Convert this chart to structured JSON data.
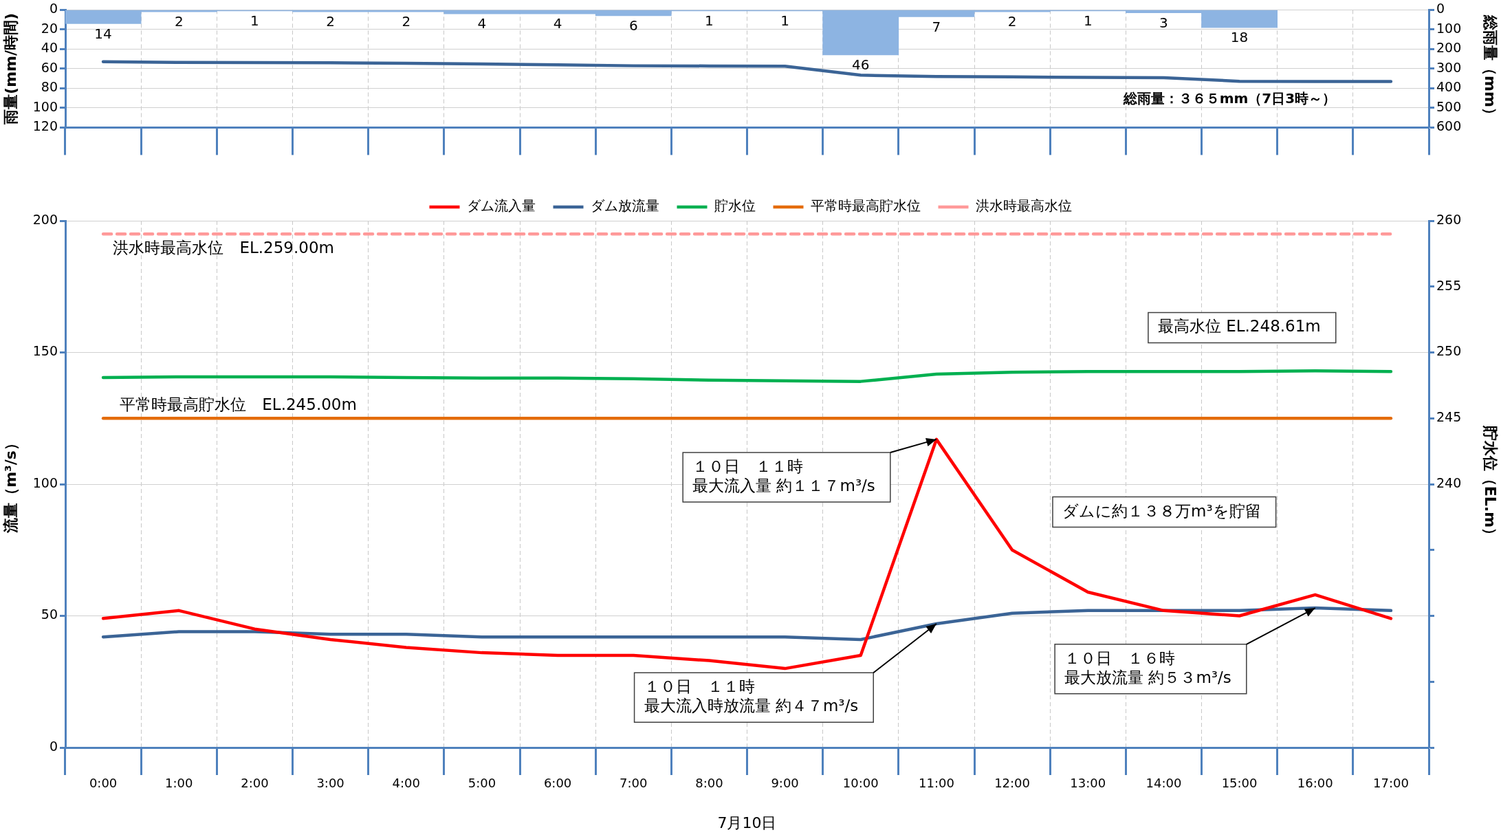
{
  "chart_data": [
    {
      "type": "bar",
      "categories": [
        null,
        null,
        null,
        null,
        null,
        null,
        null,
        null,
        null,
        null,
        null,
        null,
        null,
        null,
        null,
        null,
        null,
        null
      ],
      "series": [
        {
          "color": "#8db4e2",
          "values": [
            14,
            2,
            1,
            2,
            2,
            4,
            4,
            6,
            1,
            1,
            46,
            7,
            2,
            1,
            3,
            18,
            null,
            null
          ],
          "value_labels": [
            "14",
            "2",
            "1",
            "2",
            "2",
            "4",
            "4",
            "6",
            "1",
            "1",
            "46",
            "7",
            "2",
            "1",
            "3",
            "18",
            null,
            null
          ]
        },
        {
          "type": "line",
          "axis": "y2",
          "color": "#3b6496",
          "values": [
            264,
            268,
            269,
            270,
            272,
            276,
            280,
            285,
            286,
            287,
            333,
            340,
            342,
            344,
            346,
            364,
            365,
            365
          ]
        }
      ],
      "ylabel": "雨量(mm/時間)",
      "y2label": "総雨量（mm）",
      "ylim": [
        120,
        0
      ],
      "yticks": [
        0,
        20,
        40,
        60,
        80,
        100,
        120
      ],
      "y2lim": [
        600,
        0
      ],
      "y2ticks": [
        0,
        100,
        200,
        300,
        400,
        500,
        600
      ],
      "grid": true,
      "marker": "none",
      "legend": false,
      "annotations": [
        "総雨量：３６５mm（7日3時～）"
      ]
    },
    {
      "type": "line",
      "categories": [
        "0:00",
        "1:00",
        "2:00",
        "3:00",
        "4:00",
        "5:00",
        "6:00",
        "7:00",
        "8:00",
        "9:00",
        "10:00",
        "11:00",
        "12:00",
        "13:00",
        "14:00",
        "15:00",
        "16:00",
        "17:00"
      ],
      "series": [
        {
          "name": "ダム流入量",
          "color": "#ff0000",
          "values": [
            49,
            52,
            45,
            41,
            38,
            36,
            35,
            35,
            33,
            30,
            35,
            117,
            75,
            59,
            52,
            50,
            58,
            49
          ]
        },
        {
          "name": "ダム放流量",
          "color": "#3b6496",
          "values": [
            42,
            44,
            44,
            43,
            43,
            42,
            42,
            42,
            42,
            42,
            41,
            47,
            51,
            52,
            52,
            52,
            53,
            52
          ]
        },
        {
          "name": "貯水位",
          "axis": "y2",
          "color": "#00b050",
          "values": [
            248.1,
            248.15,
            248.15,
            248.15,
            248.1,
            248.05,
            248.05,
            248.0,
            247.9,
            247.85,
            247.8,
            248.35,
            248.5,
            248.55,
            248.55,
            248.55,
            248.6,
            248.55
          ]
        },
        {
          "name": "平常時最高貯水位",
          "axis": "y2",
          "color": "#e46c0a",
          "values": [
            245,
            245,
            245,
            245,
            245,
            245,
            245,
            245,
            245,
            245,
            245,
            245,
            245,
            245,
            245,
            245,
            245,
            245
          ]
        },
        {
          "name": "洪水時最高水位",
          "axis": "y2",
          "color": "#ff9999",
          "line_style": "dashed",
          "values": [
            259,
            259,
            259,
            259,
            259,
            259,
            259,
            259,
            259,
            259,
            259,
            259,
            259,
            259,
            259,
            259,
            259,
            259
          ]
        }
      ],
      "xlabel": "7月10日",
      "ylabel": "流量（m³/s）",
      "y2label": "貯水位（EL.m）",
      "ylim": [
        0,
        200
      ],
      "yticks": [
        0,
        50,
        100,
        150,
        200
      ],
      "y2lim": [
        220,
        260
      ],
      "y2ticks": [
        {
          "value": 220,
          "label": null
        },
        {
          "value": 225,
          "label": null
        },
        {
          "value": 230,
          "label": null
        },
        {
          "value": 235,
          "label": null
        },
        240,
        245,
        250,
        255,
        260
      ],
      "grid": true,
      "legend": "top",
      "marker": "none",
      "annotations": [
        "洪水時最高水位　EL.259.00m",
        "平常時最高貯水位　EL.245.00m",
        "最高水位 EL.248.61m",
        {
          "text": "１０日　１１時最大流入量 約１１７m³/s",
          "x": "11:00",
          "y": 117
        },
        "ダムに約１３８万m³を貯留",
        {
          "text": "１０日　１１時最大流入時放流量 約４７m³/s",
          "x": "11:00",
          "y": 47
        },
        {
          "text": "１０日　１６時最大放流量 約５３m³/s",
          "x": "16:00",
          "y": 53
        }
      ]
    }
  ]
}
